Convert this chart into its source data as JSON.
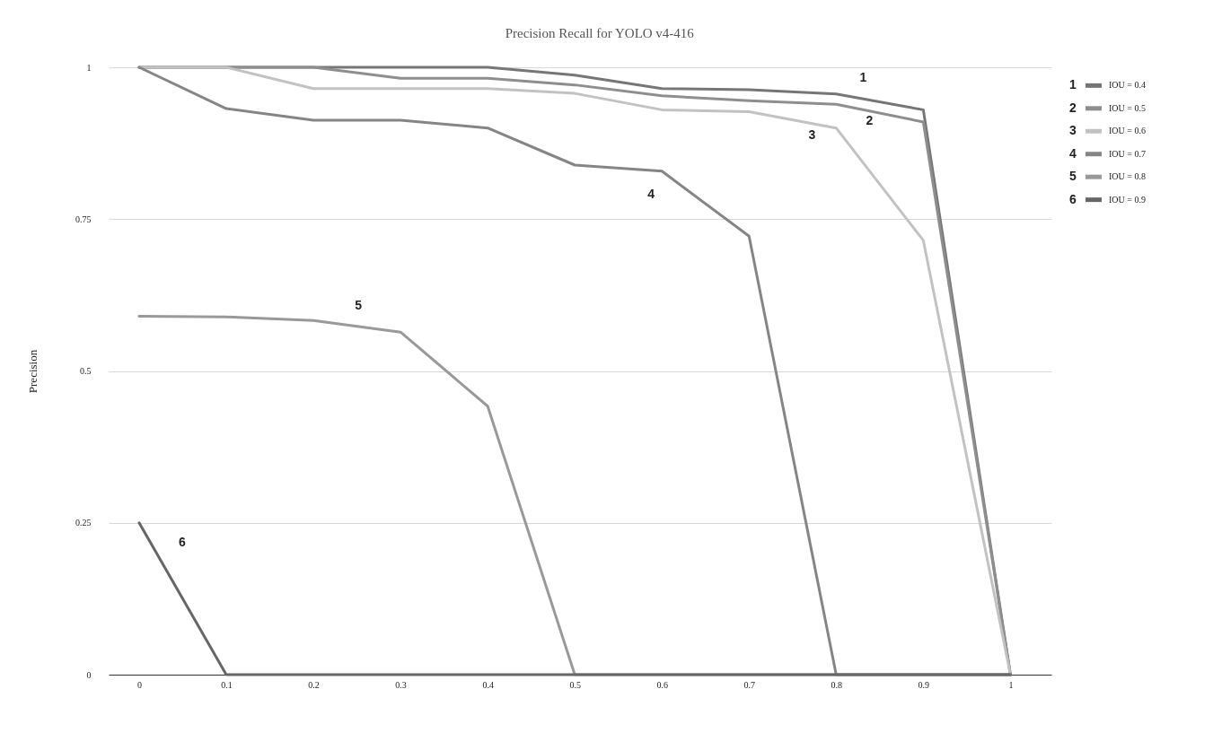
{
  "chart_data": {
    "type": "line",
    "title": "Precision Recall for YOLO v4-416",
    "ylabel": "Precision",
    "x": [
      0,
      0.1,
      0.2,
      0.3,
      0.4,
      0.5,
      0.6,
      0.7,
      0.8,
      0.9,
      1
    ],
    "series": [
      {
        "name": "IOU = 0.4",
        "color": "#767676",
        "values": [
          1,
          1,
          1,
          1,
          1,
          0.987,
          0.965,
          0.963,
          0.956,
          0.93,
          0
        ]
      },
      {
        "name": "IOU = 0.5",
        "color": "#8e8e8e",
        "values": [
          1,
          1,
          1,
          0.982,
          0.982,
          0.971,
          0.953,
          0.945,
          0.939,
          0.91,
          0
        ]
      },
      {
        "name": "IOU = 0.6",
        "color": "#c2c2c2",
        "values": [
          1,
          1,
          0.965,
          0.965,
          0.965,
          0.957,
          0.93,
          0.927,
          0.9,
          0.715,
          0
        ]
      },
      {
        "name": "IOU = 0.7",
        "color": "#858585",
        "values": [
          1,
          0.932,
          0.913,
          0.913,
          0.9,
          0.839,
          0.829,
          0.722,
          0,
          0,
          0
        ]
      },
      {
        "name": "IOU = 0.8",
        "color": "#999999",
        "values": [
          0.59,
          0.589,
          0.583,
          0.564,
          0.442,
          0,
          0,
          0,
          0,
          0,
          0
        ]
      },
      {
        "name": "IOU = 0.9",
        "color": "#666666",
        "values": [
          0.25,
          0,
          0,
          0,
          0,
          0,
          0,
          0,
          0,
          0,
          0
        ]
      }
    ],
    "xlim": [
      -0.035,
      1.047
    ],
    "ylim": [
      0,
      1
    ],
    "xticks": [
      0,
      0.1,
      0.2,
      0.3,
      0.4,
      0.5,
      0.6,
      0.7,
      0.8,
      0.9,
      1
    ],
    "yticks": [
      0,
      0.25,
      0.5,
      0.75,
      1
    ],
    "grid": "y",
    "legend": "right",
    "marker": "none",
    "line_style": "solid",
    "annotations": [
      "1",
      "2",
      "3",
      "4",
      "5",
      "6",
      "1",
      "2",
      "3",
      "4",
      "5",
      "6"
    ]
  }
}
